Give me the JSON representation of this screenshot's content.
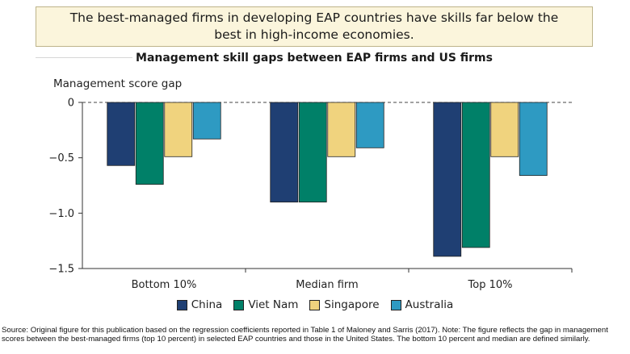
{
  "headline": "The best-managed firms in developing EAP countries have skills far below the best in high-income economies.",
  "source_note": "Source: Original figure for this publication based on the regression coefficients reported in Table 1 of Maloney and Sarris (2017). Note: The figure reflects the gap in management scores between the best-managed firms (top 10 percent) in selected EAP countries and those in the United States. The bottom 10 percent and median are defined similarly.",
  "chart_data": {
    "type": "bar",
    "title": "Management skill gaps between EAP firms and US firms",
    "ylabel": "Management score gap",
    "xlabel": "",
    "ylim": [
      -1.5,
      0
    ],
    "yticks": [
      "0",
      "−0.5",
      "−1.0",
      "−1.5"
    ],
    "ytick_values": [
      0,
      -0.5,
      -1.0,
      -1.5
    ],
    "categories": [
      "Bottom 10%",
      "Median firm",
      "Top 10%"
    ],
    "grid": false,
    "zero_line": "dashed",
    "legend_position": "bottom",
    "series": [
      {
        "name": "China",
        "color": "#1f3f73",
        "values": [
          -0.57,
          -0.9,
          -1.39
        ]
      },
      {
        "name": "Viet Nam",
        "color": "#008068",
        "values": [
          -0.74,
          -0.9,
          -1.31
        ]
      },
      {
        "name": "Singapore",
        "color": "#f0d37e",
        "values": [
          -0.49,
          -0.49,
          -0.49
        ]
      },
      {
        "name": "Australia",
        "color": "#2e9ac2",
        "values": [
          -0.33,
          -0.41,
          -0.66
        ]
      }
    ]
  }
}
